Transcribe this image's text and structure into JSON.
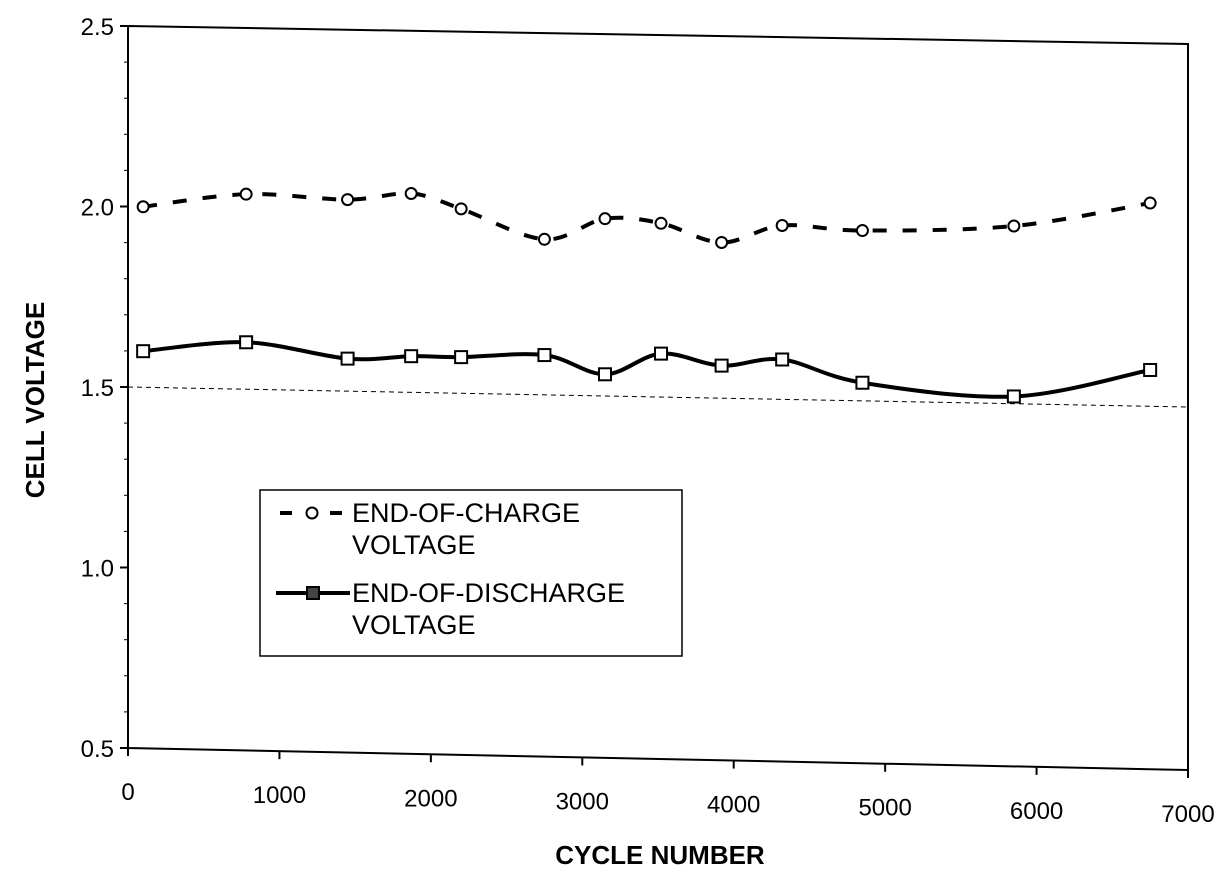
{
  "chart_data": {
    "type": "line",
    "title": "",
    "xlabel": "CYCLE NUMBER",
    "ylabel": "CELL VOLTAGE",
    "xlim": [
      0,
      7000
    ],
    "ylim": [
      0.5,
      2.5
    ],
    "x_ticks": [
      "0",
      "1000",
      "2000",
      "3000",
      "4000",
      "5000",
      "6000",
      "7000"
    ],
    "y_ticks": [
      "0.5",
      "1.0",
      "1.5",
      "2.0",
      "2.5"
    ],
    "grid": false,
    "legend_position": "center-left",
    "reference_line": {
      "y": 1.5,
      "style": "dashed"
    },
    "series": [
      {
        "name_lines": [
          "END-OF-CHARGE",
          "VOLTAGE"
        ],
        "marker": "circle",
        "line_style": "dashed",
        "x": [
          100,
          780,
          1450,
          1870,
          2200,
          2750,
          3150,
          3520,
          3920,
          4320,
          4850,
          5850,
          6750
        ],
        "y": [
          2.0,
          2.04,
          2.03,
          2.05,
          2.01,
          1.93,
          1.99,
          1.98,
          1.93,
          1.98,
          1.97,
          1.99,
          2.06
        ]
      },
      {
        "name_lines": [
          "END-OF-DISCHARGE",
          "VOLTAGE"
        ],
        "marker": "square",
        "line_style": "solid",
        "x": [
          100,
          780,
          1450,
          1870,
          2200,
          2750,
          3150,
          3520,
          3920,
          4320,
          4850,
          5850,
          6750
        ],
        "y": [
          1.6,
          1.63,
          1.59,
          1.6,
          1.6,
          1.61,
          1.56,
          1.62,
          1.59,
          1.61,
          1.55,
          1.52,
          1.6
        ]
      }
    ]
  }
}
